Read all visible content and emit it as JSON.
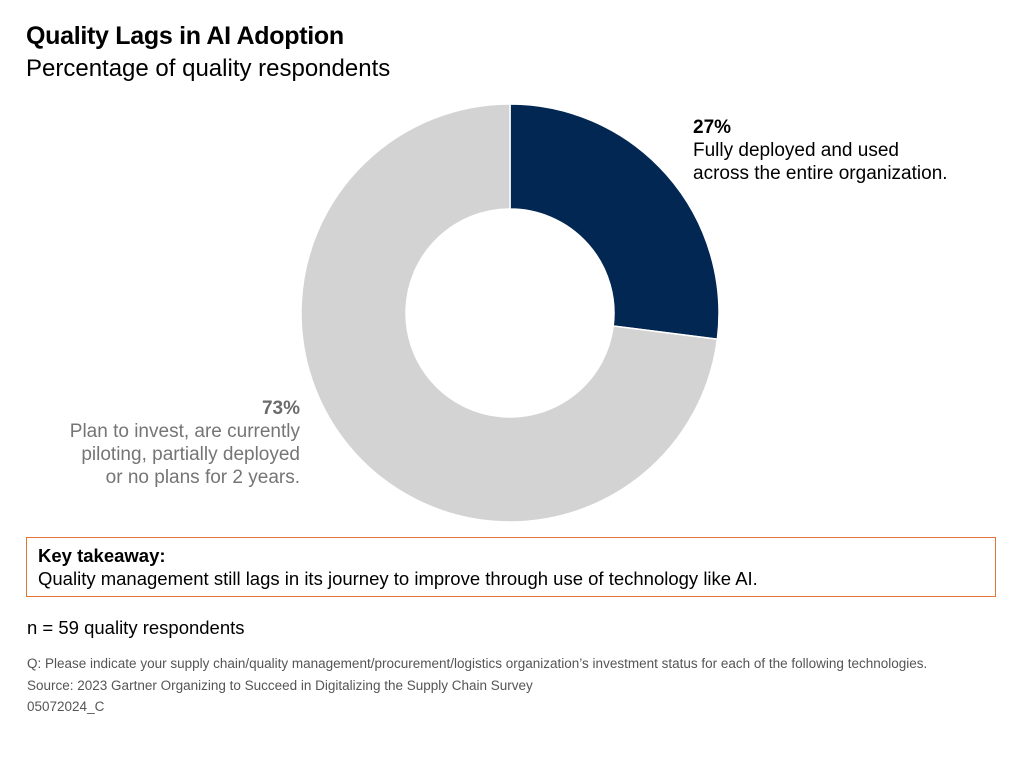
{
  "header": {
    "title": "Quality Lags in AI Adoption",
    "subtitle": "Percentage of quality respondents"
  },
  "chart_data": {
    "type": "pie",
    "donut": true,
    "unit": "%",
    "slices": [
      {
        "value": 27,
        "value_label": "27%",
        "label_lines": [
          "Fully deployed and used",
          "across the entire organization."
        ],
        "color": "#022753"
      },
      {
        "value": 73,
        "value_label": "73%",
        "label_lines": [
          "Plan to invest, are currently",
          "piloting, partially deployed",
          "or no plans for 2 years."
        ],
        "color": "#d3d3d3"
      }
    ],
    "start_angle": "12 o'clock",
    "direction": "clockwise",
    "title": "Quality Lags in AI Adoption",
    "subtitle": "Percentage of quality respondents",
    "legend": "none (direct labels)"
  },
  "takeaway": {
    "heading": "Key takeaway:",
    "text": "Quality management still lags in its journey to improve through use of technology like AI.",
    "border_color": "#e2743a"
  },
  "sample_note": "n = 59 quality respondents",
  "notes": {
    "question": "Q: Please indicate your supply chain/quality management/procurement/logistics organization’s investment status for each of the following technologies.",
    "source": "Source: 2023 Gartner Organizing to Succeed in Digitalizing the Supply Chain Survey",
    "code": "05072024_C"
  }
}
